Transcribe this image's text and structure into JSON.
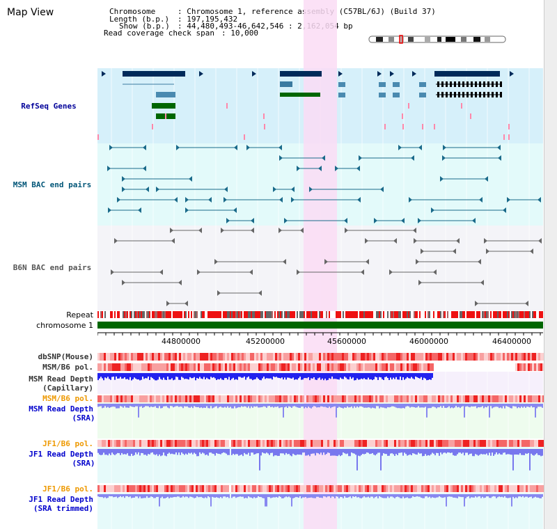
{
  "title": "Map View",
  "info": {
    "chromosome_label": "Chromosome",
    "chromosome_value": ": Chromosome 1, reference assembly (C57BL/6J) (Build 37)",
    "length_label": "Length (b.p.)",
    "length_value": ": 197,195,432",
    "show_label": "Show (b.p.)",
    "show_value": ": 44,480,493-46,642,546 : 2,162,054 bp",
    "coverage_label": "Read coverage check span",
    "coverage_value": ": 10,000"
  },
  "colors": {
    "refseq_bg": "#d6f0fa",
    "bac_bg": "#e3fafa",
    "b6n_bg": "#f4f4f8",
    "highlight": "#fadcf5",
    "chromosome": "#006600",
    "refseq_label": "#000099",
    "msm_label": "#005577",
    "b6n_label": "#555555",
    "pol_orange": "#ee9900",
    "depth_blue": "#0000cc"
  },
  "tracks": {
    "refseq": "RefSeq Genes",
    "msm_bac": "MSM BAC end pairs",
    "b6n_bac": "B6N BAC end pairs",
    "repeat": "Repeat",
    "chromosome": "chromosome 1",
    "dbsnp": "dbSNP(Mouse)",
    "msm_b6_pol_1": "MSM/B6 pol.",
    "msm_depth_cap_1": "MSM Read Depth",
    "msm_depth_cap_2": "(Capillary)",
    "msm_b6_pol_2": "MSM/B6 pol.",
    "msm_depth_sra_1": "MSM Read Depth",
    "msm_depth_sra_2": "(SRA)",
    "jf1_b6_pol_1": "JF1/B6 pol.",
    "jf1_depth_sra_1": "JF1 Read Depth",
    "jf1_depth_sra_2": "(SRA)",
    "jf1_b6_pol_2": "JF1/B6 pol.",
    "jf1_depth_trim_1": "JF1 Read Depth",
    "jf1_depth_trim_2": "(SRA trimmed)"
  },
  "axis": {
    "ticks": [
      "44800000",
      "45200000",
      "45600000",
      "46000000",
      "46400000"
    ]
  }
}
